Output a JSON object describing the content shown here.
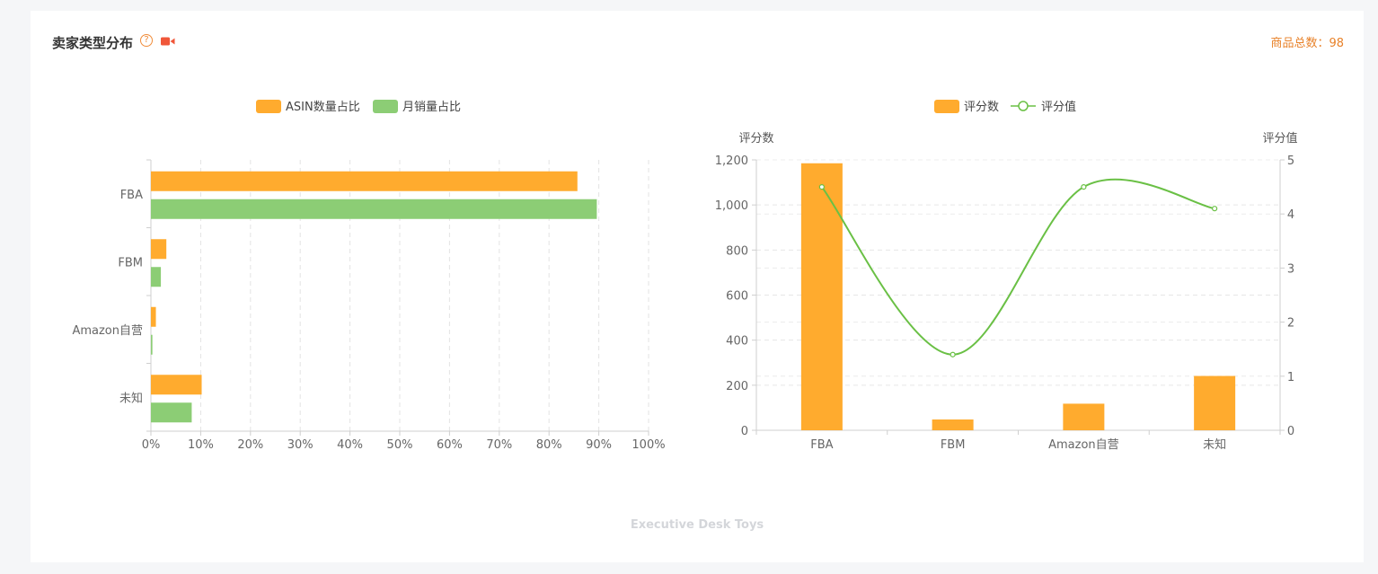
{
  "header": {
    "title": "卖家类型分布",
    "help_icon": "question-circle-icon",
    "video_icon": "video-camera-icon",
    "total_label": "商品总数：98"
  },
  "watermark": "Executive Desk Toys",
  "colors": {
    "orange": "#ffab2e",
    "green": "#8ccd75",
    "line": "#6ac045"
  },
  "chart_data": [
    {
      "type": "bar",
      "orientation": "horizontal",
      "categories": [
        "FBA",
        "FBM",
        "Amazon自营",
        "未知"
      ],
      "series": [
        {
          "name": "ASIN数量占比",
          "values": [
            85.7,
            3.1,
            1.0,
            10.2
          ]
        },
        {
          "name": "月销量占比",
          "values": [
            89.6,
            2.0,
            0.3,
            8.2
          ]
        }
      ],
      "xticks": [
        "0%",
        "10%",
        "20%",
        "30%",
        "40%",
        "50%",
        "60%",
        "70%",
        "80%",
        "90%",
        "100%"
      ],
      "xlim": [
        0,
        100
      ],
      "grid": true,
      "legend": "top-center"
    },
    {
      "type": "bar+line",
      "categories": [
        "FBA",
        "FBM",
        "Amazon自营",
        "未知"
      ],
      "series": [
        {
          "name": "评分数",
          "type": "bar",
          "axis": "left",
          "values": [
            1185,
            48,
            118,
            241
          ]
        },
        {
          "name": "评分值",
          "type": "line",
          "axis": "right",
          "values": [
            4.5,
            1.4,
            4.5,
            4.1
          ]
        }
      ],
      "ylabel_left": "评分数",
      "ylabel_right": "评分值",
      "ylim_left": [
        0,
        1200
      ],
      "ylim_right": [
        0,
        5
      ],
      "yticks_left": [
        "0",
        "200",
        "400",
        "600",
        "800",
        "1,000",
        "1,200"
      ],
      "yticks_right": [
        "0",
        "1",
        "2",
        "3",
        "4",
        "5"
      ],
      "grid": true,
      "legend": "top-center"
    }
  ]
}
